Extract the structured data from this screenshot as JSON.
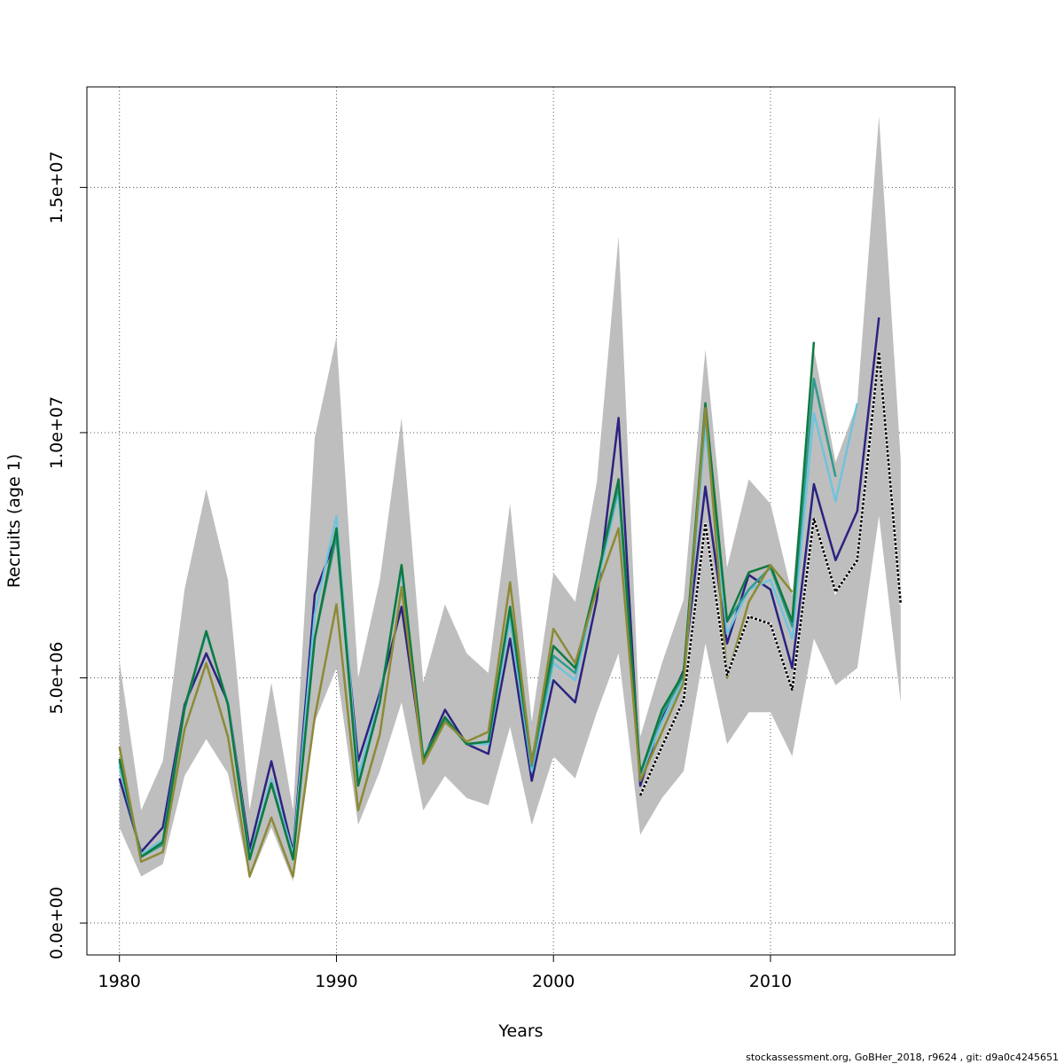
{
  "chart_data": {
    "type": "line",
    "xlabel": "Years",
    "ylabel": "Recruits (age 1)",
    "xlim": [
      1978.5,
      2018.5
    ],
    "ylim": [
      -650000,
      17050000
    ],
    "x_ticks": [
      1980,
      1990,
      2000,
      2010
    ],
    "x_tick_labels": [
      "1980",
      "1990",
      "2000",
      "2010"
    ],
    "y_ticks": [
      0,
      5000000,
      10000000,
      15000000
    ],
    "y_tick_labels": [
      "0.0e+00",
      "5.0e+06",
      "1.0e+07",
      "1.5e+07"
    ],
    "grid": true,
    "band": {
      "x": [
        1980,
        1981,
        1982,
        1983,
        1984,
        1985,
        1986,
        1987,
        1988,
        1989,
        1990,
        1991,
        1992,
        1993,
        1994,
        1995,
        1996,
        1997,
        1998,
        1999,
        2000,
        2001,
        2002,
        2003,
        2004,
        2005,
        2006,
        2007,
        2008,
        2009,
        2010,
        2011,
        2012,
        2013,
        2014,
        2015,
        2016
      ],
      "upper": [
        5350000,
        2300000,
        3300000,
        6800000,
        8850000,
        7000000,
        2300000,
        4900000,
        2300000,
        9900000,
        11950000,
        5000000,
        7000000,
        10300000,
        4900000,
        6500000,
        5500000,
        5100000,
        8550000,
        4100000,
        7150000,
        6550000,
        9000000,
        14000000,
        3800000,
        5300000,
        6600000,
        11700000,
        7250000,
        9050000,
        8550000,
        6700000,
        11700000,
        9400000,
        10600000,
        16450000,
        9450000
      ],
      "lower": [
        1950000,
        950000,
        1200000,
        3000000,
        3750000,
        3050000,
        900000,
        1950000,
        850000,
        4100000,
        5200000,
        2000000,
        3100000,
        4500000,
        2300000,
        3000000,
        2550000,
        2400000,
        4000000,
        2000000,
        3400000,
        2950000,
        4300000,
        5500000,
        1800000,
        2550000,
        3100000,
        5700000,
        3650000,
        4300000,
        4300000,
        3400000,
        5800000,
        4850000,
        5200000,
        8300000,
        4500000
      ]
    },
    "series": [
      {
        "color": "#2b2381",
        "dash": false,
        "x": [
          1980,
          1981,
          1982,
          1983,
          1984,
          1985,
          1986,
          1987,
          1988,
          1989,
          1990,
          1991,
          1992,
          1993,
          1994,
          1995,
          1996,
          1997,
          1998,
          1999,
          2000,
          2001,
          2002,
          2003,
          2004,
          2005,
          2006,
          2007,
          2008,
          2009,
          2010,
          2011,
          2012,
          2013,
          2014,
          2015
        ],
        "values": [
          2950000,
          1450000,
          1950000,
          4450000,
          5500000,
          4500000,
          1500000,
          3300000,
          1450000,
          6700000,
          7900000,
          3300000,
          4700000,
          6450000,
          3350000,
          4350000,
          3650000,
          3450000,
          5800000,
          2900000,
          4950000,
          4500000,
          6600000,
          10300000,
          2800000,
          4200000,
          5150000,
          8900000,
          5700000,
          7100000,
          6800000,
          5200000,
          8950000,
          7400000,
          8400000,
          12350000
        ]
      },
      {
        "color": "#6fc3dc",
        "dash": false,
        "x": [
          1980,
          1981,
          1982,
          1983,
          1984,
          1985,
          1986,
          1987,
          1988,
          1989,
          1990,
          1991,
          1992,
          1993,
          1994,
          1995,
          1996,
          1997,
          1998,
          1999,
          2000,
          2001,
          2002,
          2003,
          2004,
          2005,
          2006,
          2007,
          2008,
          2009,
          2010,
          2011,
          2012,
          2013,
          2014
        ],
        "values": [
          3200000,
          1400000,
          1700000,
          4400000,
          5900000,
          4500000,
          1350000,
          2950000,
          1400000,
          6300000,
          8300000,
          3000000,
          4600000,
          7200000,
          3400000,
          4150000,
          3650000,
          3650000,
          6200000,
          3100000,
          5300000,
          4950000,
          6900000,
          8800000,
          3000000,
          4100000,
          4950000,
          10100000,
          5900000,
          6800000,
          7000000,
          5800000,
          10400000,
          8600000,
          10600000
        ]
      },
      {
        "color": "#2f9b8f",
        "dash": false,
        "x": [
          1980,
          1981,
          1982,
          1983,
          1984,
          1985,
          1986,
          1987,
          1988,
          1989,
          1990,
          1991,
          1992,
          1993,
          1994,
          1995,
          1996,
          1997,
          1998,
          1999,
          2000,
          2001,
          2002,
          2003,
          2004,
          2005,
          2006,
          2007,
          2008,
          2009,
          2010,
          2011,
          2012,
          2013
        ],
        "values": [
          3300000,
          1350000,
          1600000,
          4350000,
          5950000,
          4450000,
          1300000,
          2850000,
          1300000,
          5800000,
          7900000,
          2800000,
          4500000,
          7300000,
          3350000,
          4150000,
          3650000,
          3700000,
          6400000,
          3200000,
          5450000,
          5100000,
          7000000,
          8900000,
          3050000,
          4250000,
          5050000,
          10400000,
          6150000,
          6800000,
          7250000,
          6050000,
          11100000,
          9100000
        ]
      },
      {
        "color": "#0f7a3f",
        "dash": false,
        "x": [
          1980,
          1981,
          1982,
          1983,
          1984,
          1985,
          1986,
          1987,
          1988,
          1989,
          1990,
          1991,
          1992,
          1993,
          1994,
          1995,
          1996,
          1997,
          1998,
          1999,
          2000,
          2001,
          2002,
          2003,
          2004,
          2005,
          2006,
          2007,
          2008,
          2009,
          2010,
          2011,
          2012
        ],
        "values": [
          3350000,
          1350000,
          1650000,
          4400000,
          5950000,
          4450000,
          1300000,
          2850000,
          1300000,
          5800000,
          8050000,
          2800000,
          4500000,
          7300000,
          3350000,
          4200000,
          3650000,
          3700000,
          6450000,
          3300000,
          5650000,
          5200000,
          7000000,
          9050000,
          3050000,
          4350000,
          5100000,
          10600000,
          6150000,
          7150000,
          7300000,
          6150000,
          11850000
        ]
      },
      {
        "color": "#8c8a35",
        "dash": false,
        "x": [
          1980,
          1981,
          1982,
          1983,
          1984,
          1985,
          1986,
          1987,
          1988,
          1989,
          1990,
          1991,
          1992,
          1993,
          1994,
          1995,
          1996,
          1997,
          1998,
          1999,
          2000,
          2001,
          2002,
          2003,
          2004,
          2005,
          2006,
          2007,
          2008,
          2009,
          2010,
          2011
        ],
        "values": [
          3600000,
          1250000,
          1450000,
          3950000,
          5300000,
          3800000,
          950000,
          2150000,
          950000,
          4200000,
          6500000,
          2300000,
          3850000,
          6850000,
          3250000,
          4100000,
          3700000,
          3900000,
          6950000,
          3250000,
          6000000,
          5300000,
          6800000,
          8050000,
          2900000,
          3900000,
          4900000,
          10500000,
          5000000,
          6550000,
          7300000,
          6750000
        ]
      },
      {
        "color": "#000000",
        "dash": true,
        "x": [
          2004,
          2005,
          2006,
          2007,
          2008,
          2009,
          2010,
          2011,
          2012,
          2013,
          2014,
          2015,
          2016
        ],
        "values": [
          2600000,
          3600000,
          4550000,
          8150000,
          5050000,
          6250000,
          6100000,
          4750000,
          8250000,
          6750000,
          7400000,
          11650000,
          6500000
        ]
      }
    ]
  },
  "footer": "stockassessment.org, GoBHer_2018, r9624 , git: d9a0c4245651"
}
